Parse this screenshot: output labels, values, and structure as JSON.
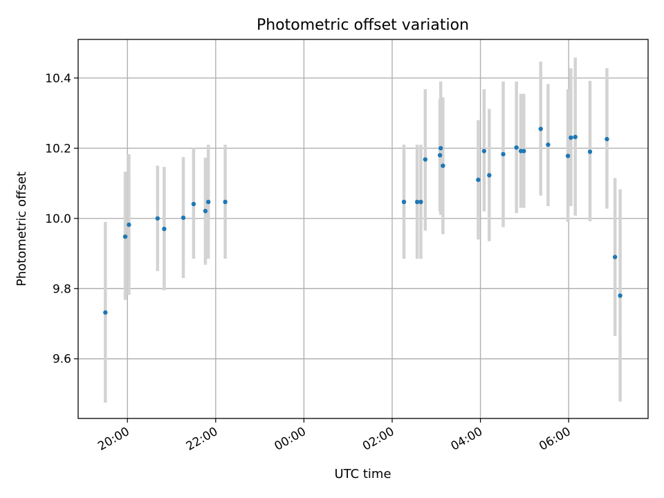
{
  "chart_data": {
    "type": "scatter",
    "title": "Photometric offset variation",
    "xlabel": "UTC time",
    "ylabel": "Photometric offset",
    "x_axis": {
      "kind": "time",
      "range": [
        "18:53",
        "07:48"
      ],
      "ticks": [
        "20:00",
        "22:00",
        "00:00",
        "02:00",
        "04:00",
        "06:00"
      ]
    },
    "y_axis": {
      "range": [
        9.43,
        10.51
      ],
      "ticks": [
        9.6,
        9.8,
        10.0,
        10.2,
        10.4
      ],
      "tick_labels": [
        "9.6",
        "9.8",
        "10.0",
        "10.2",
        "10.4"
      ]
    },
    "grid": true,
    "legend": "none",
    "colors": {
      "point": "#1f77b4",
      "errorbar": "#d3d3d3"
    },
    "series": [
      {
        "points": [
          {
            "t": "19:30",
            "y": 9.732,
            "lo": 9.475,
            "hi": 9.99
          },
          {
            "t": "19:57",
            "y": 9.948,
            "lo": 9.768,
            "hi": 10.133
          },
          {
            "t": "20:02",
            "y": 9.982,
            "lo": 9.782,
            "hi": 10.183
          },
          {
            "t": "20:41",
            "y": 10.0,
            "lo": 9.85,
            "hi": 10.15
          },
          {
            "t": "20:50",
            "y": 9.97,
            "lo": 9.795,
            "hi": 10.147
          },
          {
            "t": "21:16",
            "y": 10.002,
            "lo": 9.83,
            "hi": 10.175
          },
          {
            "t": "21:30",
            "y": 10.041,
            "lo": 9.885,
            "hi": 10.2
          },
          {
            "t": "21:46",
            "y": 10.021,
            "lo": 9.868,
            "hi": 10.173
          },
          {
            "t": "21:50",
            "y": 10.047,
            "lo": 9.885,
            "hi": 10.21
          },
          {
            "t": "22:13",
            "y": 10.047,
            "lo": 9.885,
            "hi": 10.21
          },
          {
            "t": "02:16",
            "y": 10.047,
            "lo": 9.885,
            "hi": 10.21
          },
          {
            "t": "02:34",
            "y": 10.047,
            "lo": 9.885,
            "hi": 10.21
          },
          {
            "t": "02:39",
            "y": 10.047,
            "lo": 9.885,
            "hi": 10.21
          },
          {
            "t": "02:45",
            "y": 10.168,
            "lo": 9.965,
            "hi": 10.368
          },
          {
            "t": "03:05",
            "y": 10.18,
            "lo": 10.02,
            "hi": 10.34
          },
          {
            "t": "03:06",
            "y": 10.2,
            "lo": 10.01,
            "hi": 10.39
          },
          {
            "t": "03:09",
            "y": 10.15,
            "lo": 9.955,
            "hi": 10.345
          },
          {
            "t": "03:57",
            "y": 10.11,
            "lo": 9.94,
            "hi": 10.28
          },
          {
            "t": "04:05",
            "y": 10.192,
            "lo": 10.02,
            "hi": 10.368
          },
          {
            "t": "04:12",
            "y": 10.123,
            "lo": 9.935,
            "hi": 10.312
          },
          {
            "t": "04:31",
            "y": 10.183,
            "lo": 9.975,
            "hi": 10.39
          },
          {
            "t": "04:49",
            "y": 10.202,
            "lo": 10.015,
            "hi": 10.39
          },
          {
            "t": "04:55",
            "y": 10.192,
            "lo": 10.03,
            "hi": 10.355
          },
          {
            "t": "04:59",
            "y": 10.192,
            "lo": 10.03,
            "hi": 10.355
          },
          {
            "t": "05:22",
            "y": 10.255,
            "lo": 10.065,
            "hi": 10.447
          },
          {
            "t": "05:32",
            "y": 10.21,
            "lo": 10.035,
            "hi": 10.383
          },
          {
            "t": "05:59",
            "y": 10.178,
            "lo": 9.99,
            "hi": 10.368
          },
          {
            "t": "06:03",
            "y": 10.23,
            "lo": 10.035,
            "hi": 10.428
          },
          {
            "t": "06:09",
            "y": 10.232,
            "lo": 10.008,
            "hi": 10.458
          },
          {
            "t": "06:29",
            "y": 10.19,
            "lo": 9.992,
            "hi": 10.392
          },
          {
            "t": "06:52",
            "y": 10.226,
            "lo": 10.028,
            "hi": 10.428
          },
          {
            "t": "07:03",
            "y": 9.89,
            "lo": 9.665,
            "hi": 10.115
          },
          {
            "t": "07:10",
            "y": 9.78,
            "lo": 9.478,
            "hi": 10.083
          }
        ]
      }
    ]
  }
}
